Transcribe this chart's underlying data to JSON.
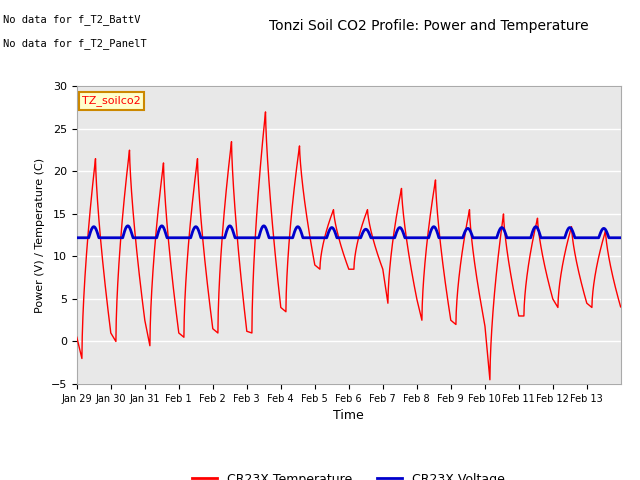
{
  "title": "Tonzi Soil CO2 Profile: Power and Temperature",
  "xlabel": "Time",
  "ylabel": "Power (V) / Temperature (C)",
  "ylim": [
    -5,
    30
  ],
  "yticks": [
    -5,
    0,
    5,
    10,
    15,
    20,
    25,
    30
  ],
  "no_data_text1": "No data for f_T2_BattV",
  "no_data_text2": "No data for f_T2_PanelT",
  "legend_label1": "TZ_soilco2",
  "legend_label2": "CR23X Temperature",
  "legend_label3": "CR23X Voltage",
  "color_temp": "#ff0000",
  "color_volt": "#0000cc",
  "color_legend_box": "#ffffcc",
  "color_legend_border": "#cc8800",
  "background_color": "#ffffff",
  "plot_bg_color": "#e8e8e8",
  "grid_color": "#ffffff",
  "xtick_labels": [
    "Jan 29",
    "Jan 30",
    "Jan 31",
    "Feb 1",
    "Feb 2",
    "Feb 3",
    "Feb 4",
    "Feb 5",
    "Feb 6",
    "Feb 7",
    "Feb 8",
    "Feb 9",
    "Feb 10",
    "Feb 11",
    "Feb 12",
    "Feb 13"
  ]
}
